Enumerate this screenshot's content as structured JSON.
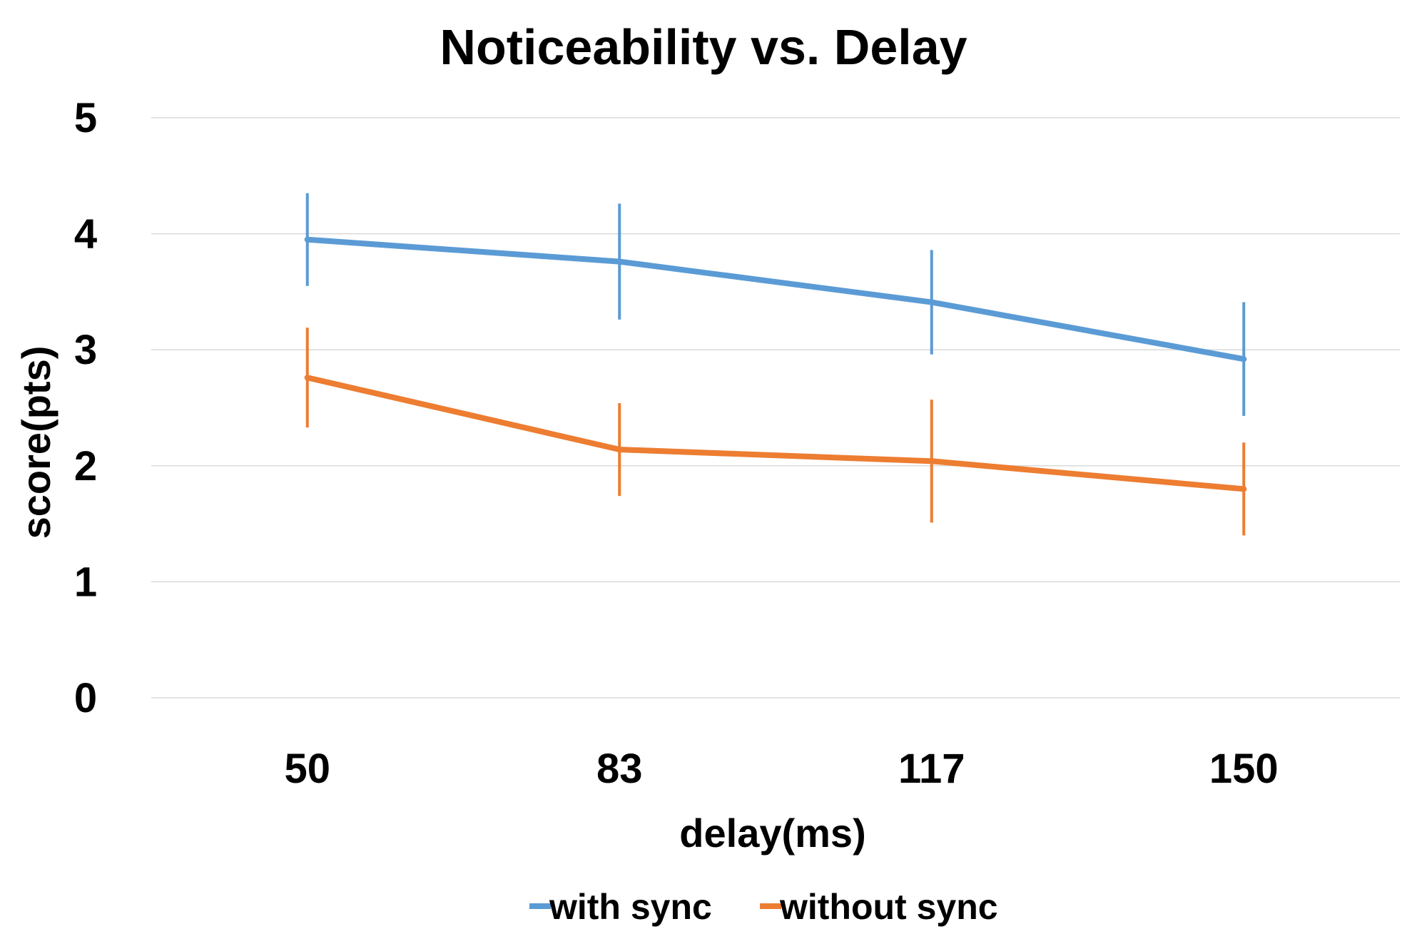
{
  "chart_data": {
    "type": "line",
    "title": "Noticeability vs. Delay",
    "xlabel": "delay(ms)",
    "ylabel": "score(pts)",
    "categories": [
      "50",
      "83",
      "117",
      "150"
    ],
    "ylim": [
      0,
      5
    ],
    "yticks": [
      "0",
      "1",
      "2",
      "3",
      "4",
      "5"
    ],
    "grid": true,
    "legend_position": "bottom",
    "series": [
      {
        "name": "with sync",
        "color": "#5b9bd5",
        "values": [
          3.95,
          3.76,
          3.41,
          2.92
        ],
        "error": [
          0.4,
          0.5,
          0.45,
          0.49
        ]
      },
      {
        "name": "without sync",
        "color": "#ed7d31",
        "values": [
          2.76,
          2.14,
          2.04,
          1.8
        ],
        "error": [
          0.43,
          0.4,
          0.53,
          0.4
        ]
      }
    ]
  }
}
